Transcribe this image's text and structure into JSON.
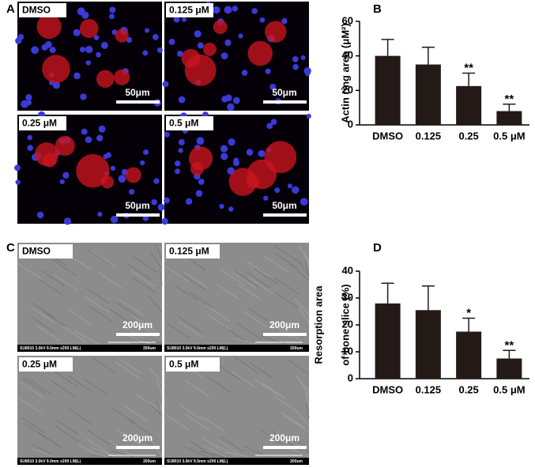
{
  "panel_labels": [
    "A",
    "B",
    "C",
    "D"
  ],
  "fluorescence": {
    "images": [
      {
        "label": "DMSO",
        "scale_bar": "50μm"
      },
      {
        "label": "0.125 μM",
        "scale_bar": "50μm"
      },
      {
        "label": "0.25 μM",
        "scale_bar": "50μm"
      },
      {
        "label": "0.5 μM",
        "scale_bar": "50μm"
      }
    ]
  },
  "sem": {
    "images": [
      {
        "label": "DMSO",
        "scale_bar": "200μm",
        "footer": "SU8010 3.0kV 9.0mm x200 LM(L)",
        "footer_scale": "200um"
      },
      {
        "label": "0.125 μM",
        "scale_bar": "200μm",
        "footer": "SU8010 3.0kV 9.0mm x200 LM(L)",
        "footer_scale": "200um"
      },
      {
        "label": "0.25 μM",
        "scale_bar": "200μm",
        "footer": "SU8010 3.0kV 9.0mm x200 LM(L)",
        "footer_scale": "200um"
      },
      {
        "label": "0.5 μM",
        "scale_bar": "200μm",
        "footer": "SU8010 3.0kV 9.0mm x200 LM(L)",
        "footer_scale": "200um"
      }
    ]
  },
  "chart_data": [
    {
      "type": "bar",
      "ylabel": [
        "Actin ring area (μM²)"
      ],
      "categories": [
        "DMSO",
        "0.125",
        "0.25",
        "0.5 μM"
      ],
      "values": [
        40,
        35,
        22.5,
        8
      ],
      "errors": [
        9.5,
        10,
        7.5,
        4
      ],
      "significance": [
        null,
        null,
        "**",
        "**"
      ],
      "color": "#231a17",
      "ylim": [
        0,
        60
      ],
      "yticks": [
        0,
        20,
        40,
        60
      ]
    },
    {
      "type": "bar",
      "ylabel": [
        "Resorption area",
        "of bone slice (%)"
      ],
      "categories": [
        "DMSO",
        "0.125",
        "0.25",
        "0.5 μM"
      ],
      "values": [
        28,
        25.5,
        17.5,
        7.5
      ],
      "errors": [
        7.5,
        9,
        5,
        3
      ],
      "significance": [
        null,
        null,
        "*",
        "**"
      ],
      "color": "#231a17",
      "ylim": [
        0,
        40
      ],
      "yticks": [
        0,
        10,
        20,
        30,
        40
      ]
    }
  ]
}
